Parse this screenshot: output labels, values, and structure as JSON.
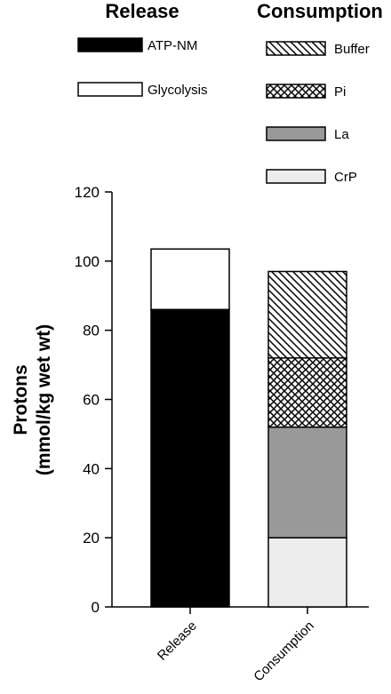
{
  "chart_data": {
    "type": "bar",
    "stacked": true,
    "title": "",
    "xlabel": "",
    "ylabel_line1": "Protons",
    "ylabel_line2": "(mmol/kg wet wt)",
    "ylim": [
      0,
      120
    ],
    "yticks": [
      0,
      20,
      40,
      60,
      80,
      100,
      120
    ],
    "categories": [
      "Release",
      "Consumption"
    ],
    "legend_groups": [
      {
        "heading": "Release",
        "entries": [
          "ATP-NM",
          "Glycolysis"
        ]
      },
      {
        "heading": "Consumption",
        "entries": [
          "Buffer",
          "Pi",
          "La",
          "CrP"
        ]
      }
    ],
    "series": [
      {
        "name": "ATP-NM",
        "category": "Release",
        "value": 86,
        "fill": "solid",
        "color": "#000000"
      },
      {
        "name": "Glycolysis",
        "category": "Release",
        "value": 17.5,
        "fill": "solid",
        "color": "#ffffff"
      },
      {
        "name": "CrP",
        "category": "Consumption",
        "value": 20,
        "fill": "solid",
        "color": "#ececec"
      },
      {
        "name": "La",
        "category": "Consumption",
        "value": 32,
        "fill": "solid",
        "color": "#999999"
      },
      {
        "name": "Pi",
        "category": "Consumption",
        "value": 20,
        "fill": "crosshatch",
        "color": "#000000"
      },
      {
        "name": "Buffer",
        "category": "Consumption",
        "value": 25,
        "fill": "diagonal",
        "color": "#000000"
      }
    ],
    "grid": false,
    "legend_placement": "top"
  }
}
